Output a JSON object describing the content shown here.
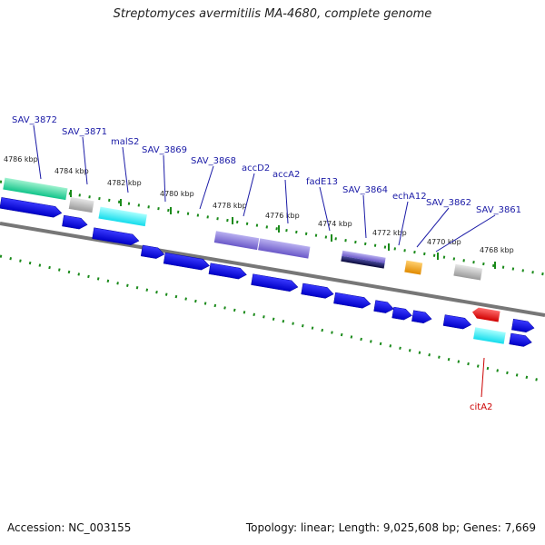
{
  "title": "Streptomyces avermitilis MA-4680, complete genome",
  "footer": {
    "accession": "Accession: NC_003155",
    "summary": "Topology: linear; Length: 9,025,608 bp; Genes: 7,669"
  },
  "colors": {
    "backbone": "#777777",
    "tick": "#1a8a1a",
    "gene_default": "#1010e0",
    "label_blue": "#1a1aa6",
    "label_red": "#cc0000"
  },
  "ticks": [
    "4786 kbp",
    "4784 kbp",
    "4782 kbp",
    "4780 kbp",
    "4778 kbp",
    "4776 kbp",
    "4774 kbp",
    "4772 kbp",
    "4770 kbp",
    "4768 kbp"
  ],
  "gene_labels": [
    {
      "text": "SAV_3872",
      "color": "#1a1aa6"
    },
    {
      "text": "SAV_3871",
      "color": "#1a1aa6"
    },
    {
      "text": "malS2",
      "color": "#1a1aa6"
    },
    {
      "text": "SAV_3869",
      "color": "#1a1aa6"
    },
    {
      "text": "SAV_3868",
      "color": "#1a1aa6"
    },
    {
      "text": "accD2",
      "color": "#1a1aa6"
    },
    {
      "text": "accA2",
      "color": "#1a1aa6"
    },
    {
      "text": "fadE13",
      "color": "#1a1aa6"
    },
    {
      "text": "SAV_3864",
      "color": "#1a1aa6"
    },
    {
      "text": "echA12",
      "color": "#1a1aa6"
    },
    {
      "text": "SAV_3862",
      "color": "#1a1aa6"
    },
    {
      "text": "SAV_3861",
      "color": "#1a1aa6"
    },
    {
      "text": "citA2",
      "color": "#cc0000"
    }
  ]
}
